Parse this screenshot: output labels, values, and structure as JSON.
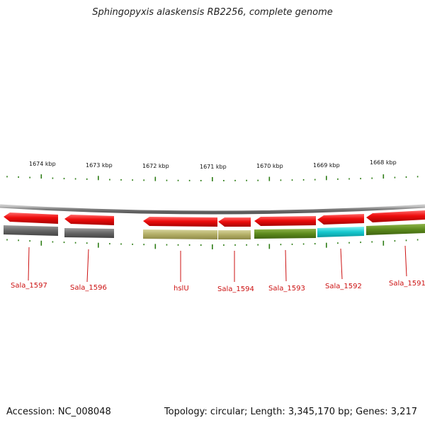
{
  "title": "Sphingopyxis alaskensis RB2256, complete genome",
  "footer": {
    "accession": "Accession: NC_008048",
    "summary": "Topology: circular; Length: 3,345,170 bp; Genes: 3,217"
  },
  "colors": {
    "cds": "#e01010",
    "backbone": "#8a8a8a",
    "tick": "#2e7d16",
    "label": "#cc1111",
    "gray_feature": "#6a6a6a",
    "olive_feature": "#b9b56e",
    "green_feature": "#5f8c1f",
    "cyan_feature": "#14c9cf"
  },
  "scale": {
    "labels": [
      "1674 kbp",
      "1673 kbp",
      "1672 kbp",
      "1671 kbp",
      "1670 kbp",
      "1669 kbp",
      "1668 kbp"
    ]
  },
  "genes": [
    {
      "name": "Sala_1597",
      "strand": "-",
      "color": "gray"
    },
    {
      "name": "Sala_1596",
      "strand": "-",
      "color": "gray"
    },
    {
      "name": "hslU",
      "strand": "-",
      "color": "olive"
    },
    {
      "name": "Sala_1594",
      "strand": "-",
      "color": "olive"
    },
    {
      "name": "Sala_1593",
      "strand": "-",
      "color": "green"
    },
    {
      "name": "Sala_1592",
      "strand": "-",
      "color": "cyan"
    },
    {
      "name": "Sala_1591",
      "strand": "-",
      "color": "green"
    }
  ]
}
